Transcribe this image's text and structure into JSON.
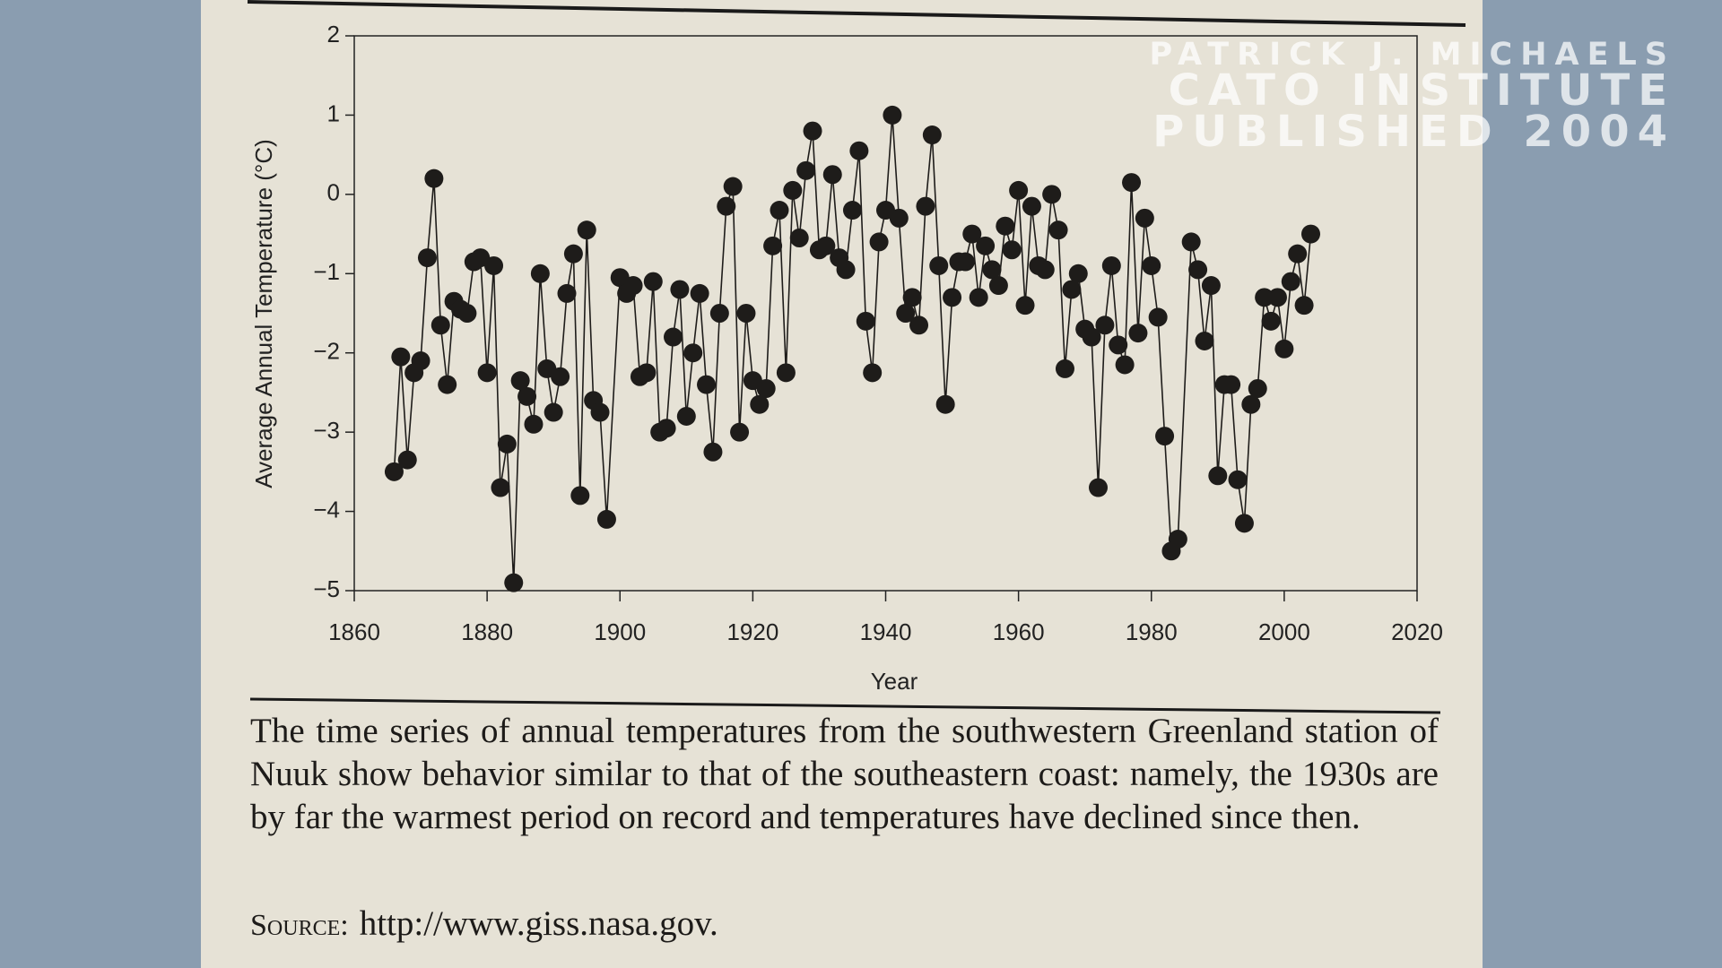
{
  "chart_data": {
    "type": "line",
    "ylabel": "Average Annual Temperature (°C)",
    "xlabel": "Year",
    "x": [
      1866,
      1867,
      1868,
      1869,
      1870,
      1871,
      1872,
      1873,
      1874,
      1875,
      1876,
      1877,
      1878,
      1879,
      1880,
      1881,
      1882,
      1883,
      1884,
      1885,
      1886,
      1887,
      1888,
      1889,
      1890,
      1891,
      1892,
      1893,
      1894,
      1895,
      1896,
      1897,
      1898,
      1900,
      1901,
      1902,
      1903,
      1904,
      1905,
      1906,
      1907,
      1908,
      1909,
      1910,
      1911,
      1912,
      1913,
      1914,
      1915,
      1916,
      1917,
      1918,
      1919,
      1920,
      1921,
      1922,
      1923,
      1924,
      1925,
      1926,
      1927,
      1928,
      1929,
      1930,
      1931,
      1932,
      1933,
      1934,
      1935,
      1936,
      1937,
      1938,
      1939,
      1940,
      1941,
      1942,
      1943,
      1944,
      1945,
      1946,
      1947,
      1948,
      1949,
      1950,
      1951,
      1952,
      1953,
      1954,
      1955,
      1956,
      1957,
      1958,
      1959,
      1960,
      1961,
      1962,
      1963,
      1964,
      1965,
      1966,
      1967,
      1968,
      1969,
      1970,
      1971,
      1972,
      1973,
      1974,
      1975,
      1976,
      1977,
      1978,
      1979,
      1980,
      1981,
      1982,
      1983,
      1984,
      1986,
      1987,
      1988,
      1989,
      1990,
      1991,
      1992,
      1993,
      1994,
      1995,
      1996,
      1997,
      1998,
      1999,
      2000,
      2001,
      2002,
      2003,
      2004
    ],
    "series": [
      {
        "color": "#1e1c1a",
        "values": [
          -3.5,
          -2.05,
          -3.35,
          -2.25,
          -2.1,
          -0.8,
          0.2,
          -1.65,
          -2.4,
          -1.35,
          -1.45,
          -1.5,
          -0.85,
          -0.8,
          -2.25,
          -0.9,
          -3.7,
          -3.15,
          -4.9,
          -2.35,
          -2.55,
          -2.9,
          -1.0,
          -2.2,
          -2.75,
          -2.3,
          -1.25,
          -0.75,
          -3.8,
          -0.45,
          -2.6,
          -2.75,
          -4.1,
          -1.05,
          -1.25,
          -1.15,
          -2.3,
          -2.25,
          -1.1,
          -3.0,
          -2.95,
          -1.8,
          -1.2,
          -2.8,
          -2.0,
          -1.25,
          -2.4,
          -3.25,
          -1.5,
          -0.15,
          0.1,
          -3.0,
          -1.5,
          -2.35,
          -2.65,
          -2.45,
          -0.65,
          -0.2,
          -2.25,
          0.05,
          -0.55,
          0.3,
          0.8,
          -0.7,
          -0.65,
          0.25,
          -0.8,
          -0.95,
          -0.2,
          0.55,
          -1.6,
          -2.25,
          -0.6,
          -0.2,
          1.0,
          -0.3,
          -1.5,
          -1.3,
          -1.65,
          -0.15,
          0.75,
          -0.9,
          -2.65,
          -1.3,
          -0.85,
          -0.85,
          -0.5,
          -1.3,
          -0.65,
          -0.95,
          -1.15,
          -0.4,
          -0.7,
          0.05,
          -1.4,
          -0.15,
          -0.9,
          -0.95,
          0.0,
          -0.45,
          -2.2,
          -1.2,
          -1.0,
          -1.7,
          -1.8,
          -3.7,
          -1.65,
          -0.9,
          -1.9,
          -2.15,
          0.15,
          -1.75,
          -0.3,
          -0.9,
          -1.55,
          -3.05,
          -4.5,
          -4.35,
          -0.6,
          -0.95,
          -1.85,
          -1.15,
          -3.55,
          -2.4,
          -2.4,
          -3.6,
          -4.15,
          -2.65,
          -2.45,
          -1.3,
          -1.6,
          -1.3,
          -1.95,
          -1.1,
          -0.75,
          -1.4,
          -0.5
        ]
      }
    ],
    "xlim": [
      1860,
      2020
    ],
    "xticks": [
      1860,
      1880,
      1900,
      1920,
      1940,
      1960,
      1980,
      2000,
      2020
    ],
    "ylim": [
      -5,
      2
    ],
    "yticks": [
      {
        "value": -5,
        "label": "−5"
      },
      {
        "value": -4,
        "label": "−4"
      },
      {
        "value": -3,
        "label": "−3"
      },
      {
        "value": -2,
        "label": "−2"
      },
      {
        "value": -1,
        "label": "−1"
      },
      0,
      1,
      2
    ],
    "annotations": [
      "PATRICK J. MICHAELS",
      "CATO INSTITUTE",
      "PUBLISHED 2004"
    ],
    "caption": "The time series of annual temperatures from the southwestern Greenland station of Nuuk show behavior similar to that of the southeastern coast: namely, the 1930s are by far the warmest period on record and temperatures have declined since then.",
    "source_label": "Source:",
    "source": "http://www.giss.nasa.gov."
  }
}
